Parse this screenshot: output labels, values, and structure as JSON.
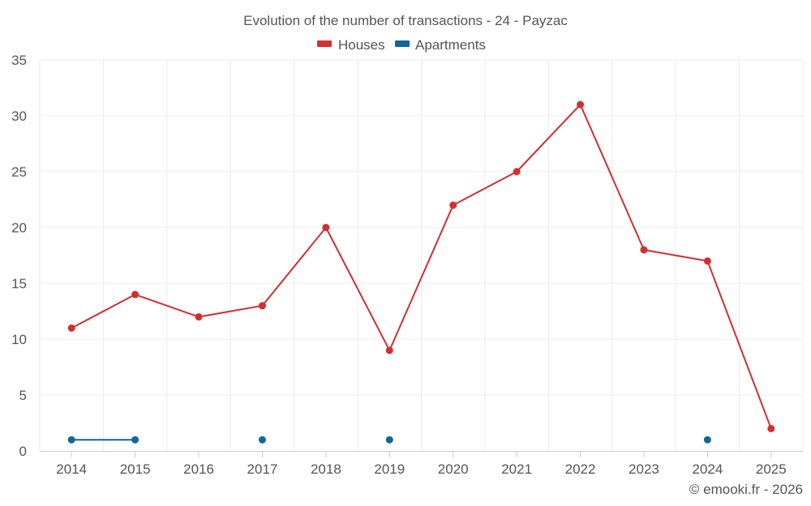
{
  "chart_data": {
    "type": "line",
    "title": "Evolution of the number of transactions - 24 - Payzac",
    "categories": [
      "2014",
      "2015",
      "2016",
      "2017",
      "2018",
      "2019",
      "2020",
      "2021",
      "2022",
      "2023",
      "2024",
      "2025"
    ],
    "yticks": [
      "0",
      "5",
      "10",
      "15",
      "20",
      "25",
      "30",
      "35"
    ],
    "ylim": [
      0,
      35
    ],
    "grid": true,
    "legend_position": "top-center",
    "series": [
      {
        "name": "Houses",
        "color": "#d32f2f",
        "values": [
          11,
          14,
          12,
          13,
          20,
          9,
          22,
          25,
          31,
          18,
          17,
          2
        ]
      },
      {
        "name": "Apartments",
        "color": "#0f6798",
        "values": [
          1,
          1,
          null,
          1,
          null,
          1,
          null,
          null,
          null,
          null,
          1,
          null
        ]
      }
    ],
    "credit": "© emooki.fr - 2026"
  }
}
